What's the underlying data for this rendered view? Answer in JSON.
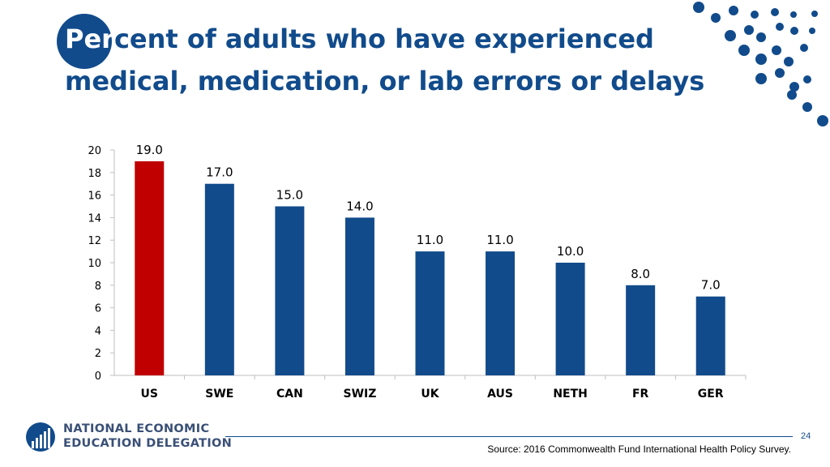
{
  "header": {
    "title_line1_highlight": "Per",
    "title_line1_rest": "cent of adults who have experienced",
    "title_line2": "medical, medication, or lab errors or delays"
  },
  "chart_data": {
    "type": "bar",
    "title": "Percent of adults who have experienced medical, medication, or lab errors or delays",
    "categories": [
      "US",
      "SWE",
      "CAN",
      "SWIZ",
      "UK",
      "AUS",
      "NETH",
      "FR",
      "GER"
    ],
    "values": [
      19.0,
      17.0,
      15.0,
      14.0,
      11.0,
      11.0,
      10.0,
      8.0,
      7.0
    ],
    "data_labels": [
      "19.0",
      "17.0",
      "15.0",
      "14.0",
      "11.0",
      "11.0",
      "10.0",
      "8.0",
      "7.0"
    ],
    "bar_colors": [
      "#c00000",
      "#114b8b",
      "#114b8b",
      "#114b8b",
      "#114b8b",
      "#114b8b",
      "#114b8b",
      "#114b8b",
      "#114b8b"
    ],
    "yticks": [
      "0",
      "2",
      "4",
      "6",
      "8",
      "10",
      "12",
      "14",
      "16",
      "18",
      "20"
    ],
    "ylim": [
      0,
      20
    ],
    "xlabel": "",
    "ylabel": "",
    "grid": false,
    "legend": "none"
  },
  "footer": {
    "logo_line1": "NATIONAL ECONOMIC",
    "logo_line2": "EDUCATION DELEGATION",
    "page_number": "24",
    "source": "Source: 2016 Commonwealth Fund International Health Policy Survey."
  },
  "colors": {
    "brand_blue": "#114b8b",
    "highlight_red": "#c00000",
    "logo_text": "#3a5077"
  },
  "icons": {
    "logo": "need-logo-icon",
    "decoration": "dot-pattern-decoration"
  }
}
